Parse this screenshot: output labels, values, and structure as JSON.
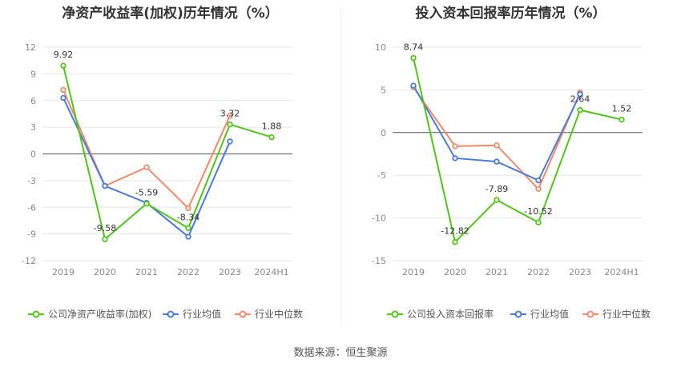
{
  "source": "数据来源：恒生聚源",
  "chart_data": [
    {
      "type": "line",
      "title": "净资产收益率(加权)历年情况（%）",
      "categories": [
        "2019",
        "2020",
        "2021",
        "2022",
        "2023",
        "2024H1"
      ],
      "ylim": [
        -12,
        12
      ],
      "yticks": [
        12,
        9,
        6,
        3,
        0,
        -3,
        -6,
        -9,
        -12
      ],
      "series": [
        {
          "name": "公司净资产收益率(加权)",
          "color": "#52c41a",
          "values": [
            9.92,
            -9.58,
            -5.59,
            -8.34,
            3.32,
            1.88
          ],
          "labels": [
            "9.92",
            "-9.58",
            "-5.59",
            "-8.34",
            "3.32",
            "1.88"
          ]
        },
        {
          "name": "行业均值",
          "color": "#4a7bdb",
          "values": [
            6.3,
            -3.6,
            -5.5,
            -9.3,
            1.4,
            null
          ]
        },
        {
          "name": "行业中位数",
          "color": "#f08a6a",
          "values": [
            7.2,
            -3.6,
            -1.5,
            -6.1,
            4.3,
            null
          ]
        }
      ]
    },
    {
      "type": "line",
      "title": "投入资本回报率历年情况（%）",
      "categories": [
        "2019",
        "2020",
        "2021",
        "2022",
        "2023",
        "2024H1"
      ],
      "ylim": [
        -15,
        10
      ],
      "yticks": [
        10,
        5,
        0,
        -5,
        -10,
        -15
      ],
      "series": [
        {
          "name": "公司投入资本回报率",
          "color": "#52c41a",
          "values": [
            8.74,
            -12.82,
            -7.89,
            -10.52,
            2.64,
            1.52
          ],
          "labels": [
            "8.74",
            "-12.82",
            "-7.89",
            "-10.52",
            "2.64",
            "1.52"
          ]
        },
        {
          "name": "行业均值",
          "color": "#4a7bdb",
          "values": [
            5.5,
            -3.0,
            -3.4,
            -5.6,
            4.5,
            null
          ]
        },
        {
          "name": "行业中位数",
          "color": "#f08a6a",
          "values": [
            5.3,
            -1.6,
            -1.5,
            -6.6,
            4.7,
            null
          ]
        }
      ]
    }
  ]
}
